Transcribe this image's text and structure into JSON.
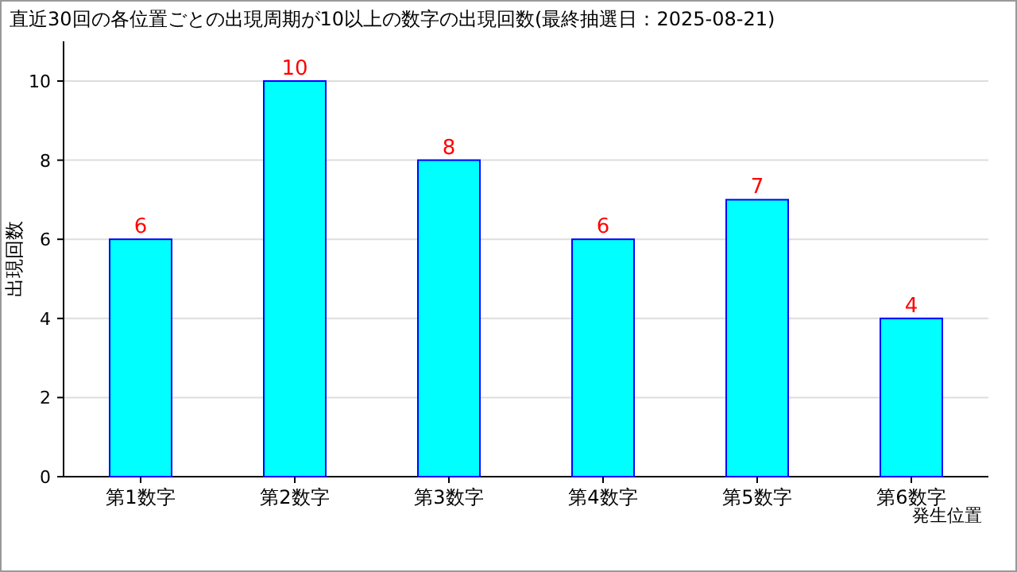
{
  "chart_data": {
    "type": "bar",
    "title": "直近30回の各位置ごとの出現周期が10以上の数字の出現回数(最終抽選日：2025-08-21)",
    "xlabel": "発生位置",
    "ylabel": "出現回数",
    "categories": [
      "第1数字",
      "第2数字",
      "第3数字",
      "第4数字",
      "第5数字",
      "第6数字"
    ],
    "values": [
      6,
      10,
      8,
      6,
      7,
      4
    ],
    "color": "#00ffff",
    "ylim": [
      0,
      10
    ],
    "yticks": [
      0,
      2,
      4,
      6,
      8,
      10
    ],
    "grid": "y",
    "data_labels": true
  }
}
